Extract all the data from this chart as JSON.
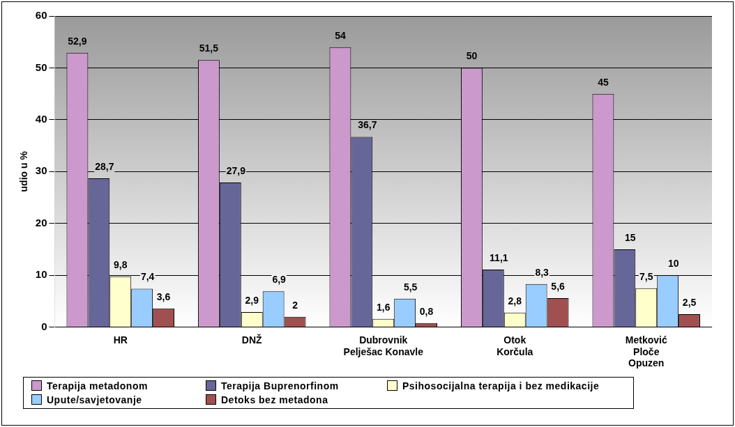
{
  "chart_data": {
    "type": "bar",
    "ylabel": "udio u %",
    "categories": [
      "HR",
      "DNŽ",
      "Dubrovnik\nPelješac Konavle",
      "Otok\nKorčula",
      "Metković\nPloče\nOpuzen"
    ],
    "series": [
      {
        "name": "Terapija metadonom",
        "color": "#cc99cc",
        "values": [
          52.9,
          51.5,
          54,
          50,
          45
        ],
        "value_labels": [
          "52,9",
          "51,5",
          "54",
          "50",
          "45"
        ]
      },
      {
        "name": "Terapija Buprenorfinom",
        "color": "#666699",
        "values": [
          28.7,
          27.9,
          36.7,
          11.1,
          15
        ],
        "value_labels": [
          "28,7",
          "27,9",
          "36,7",
          "11,1",
          "15"
        ]
      },
      {
        "name": "Psihosocijalna terapija i bez medikacije",
        "color": "#ffffcc",
        "values": [
          9.8,
          2.9,
          1.6,
          2.8,
          7.5
        ],
        "value_labels": [
          "9,8",
          "2,9",
          "1,6",
          "2,8",
          "7,5"
        ]
      },
      {
        "name": "Upute/savjetovanje",
        "color": "#99ccff",
        "values": [
          7.4,
          6.9,
          5.5,
          8.3,
          10
        ],
        "value_labels": [
          "7,4",
          "6,9",
          "5,5",
          "8,3",
          "10"
        ]
      },
      {
        "name": "Detoks bez metadona",
        "color": "#a05050",
        "values": [
          3.6,
          2,
          0.8,
          5.6,
          2.5
        ],
        "value_labels": [
          "3,6",
          "2",
          "0,8",
          "5,6",
          "2,5"
        ]
      }
    ],
    "ylim": [
      0,
      60
    ],
    "yticks": [
      0,
      10,
      20,
      30,
      40,
      50,
      60
    ],
    "grid": "y",
    "legend": "bottom"
  }
}
